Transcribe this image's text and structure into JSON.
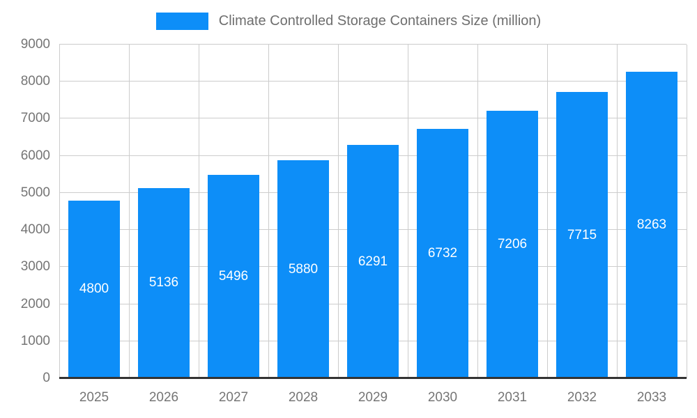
{
  "chart_data": {
    "type": "bar",
    "title": "Climate Controlled Storage Containers Size (million)",
    "categories": [
      "2025",
      "2026",
      "2027",
      "2028",
      "2029",
      "2030",
      "2031",
      "2032",
      "2033"
    ],
    "values": [
      4800,
      5136,
      5496,
      5880,
      6291,
      6732,
      7206,
      7715,
      8263
    ],
    "xlabel": "",
    "ylabel": "",
    "ylim": [
      0,
      9000
    ],
    "ytick_step": 1000,
    "grid": true,
    "legend_position": "top-center",
    "colors": {
      "bar": "#0D8EF8",
      "grid": "#cccccc",
      "axis_line": "#333333",
      "tick_label": "#757575",
      "title": "#6e6e6e",
      "value_label": "#ffffff",
      "background": "#ffffff"
    }
  }
}
